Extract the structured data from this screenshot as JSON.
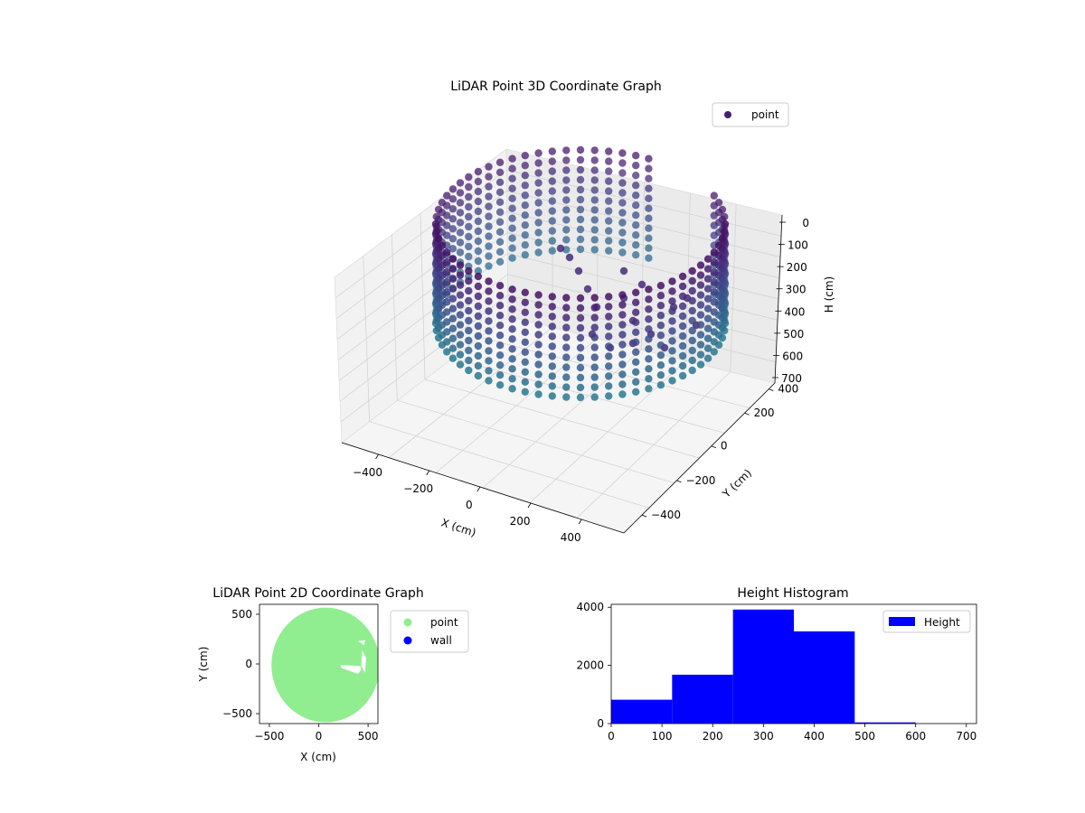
{
  "chart_data": [
    {
      "type": "scatter3d",
      "title": "LiDAR Point 3D Coordinate Graph",
      "xlabel": "X (cm)",
      "ylabel": "Y (cm)",
      "zlabel": "H (cm)",
      "xticks": [
        "−400",
        "−200",
        "0",
        "200",
        "400"
      ],
      "yticks": [
        "−400",
        "−200",
        "0",
        "200",
        "400"
      ],
      "zticks": [
        "0",
        "100",
        "200",
        "300",
        "400",
        "500",
        "600",
        "700"
      ],
      "xlim": [
        -560,
        560
      ],
      "ylim": [
        -560,
        560
      ],
      "zlim": [
        0,
        700
      ],
      "z_inverted": true,
      "legend": [
        {
          "label": "point",
          "color": "#46206f"
        }
      ],
      "legend_position": "top-right",
      "colormap": "viridis",
      "shape": "cylindrical wall of points, radius ~560 cm, heights 0-600 cm, plus a cluster of objects inside",
      "grid": true
    },
    {
      "type": "scatter",
      "title": "LiDAR Point 2D Coordinate Graph",
      "xlabel": "X (cm)",
      "ylabel": "Y (cm)",
      "xticks": [
        "−500",
        "0",
        "500"
      ],
      "yticks": [
        "500",
        "0",
        "−500"
      ],
      "xlim": [
        -600,
        600
      ],
      "ylim": [
        -600,
        600
      ],
      "legend": [
        {
          "label": "point",
          "color": "#90ee90"
        },
        {
          "label": "wall",
          "color": "#0000ff"
        }
      ],
      "legend_position": "outside-right",
      "grid": false
    },
    {
      "type": "bar",
      "title": "Height Histogram",
      "bins": [
        {
          "from": 0,
          "to": 120,
          "value": 820
        },
        {
          "from": 120,
          "to": 240,
          "value": 1680
        },
        {
          "from": 240,
          "to": 360,
          "value": 3920
        },
        {
          "from": 360,
          "to": 480,
          "value": 3170
        },
        {
          "from": 480,
          "to": 600,
          "value": 40
        },
        {
          "from": 600,
          "to": 720,
          "value": 0
        }
      ],
      "xticks": [
        "0",
        "100",
        "200",
        "300",
        "400",
        "500",
        "600",
        "700"
      ],
      "yticks": [
        "0",
        "2000",
        "4000"
      ],
      "xlim": [
        0,
        720
      ],
      "ylim": [
        0,
        4100
      ],
      "legend": [
        {
          "label": "Height",
          "color": "#0000ff"
        }
      ],
      "legend_position": "top-right",
      "grid": false
    }
  ]
}
